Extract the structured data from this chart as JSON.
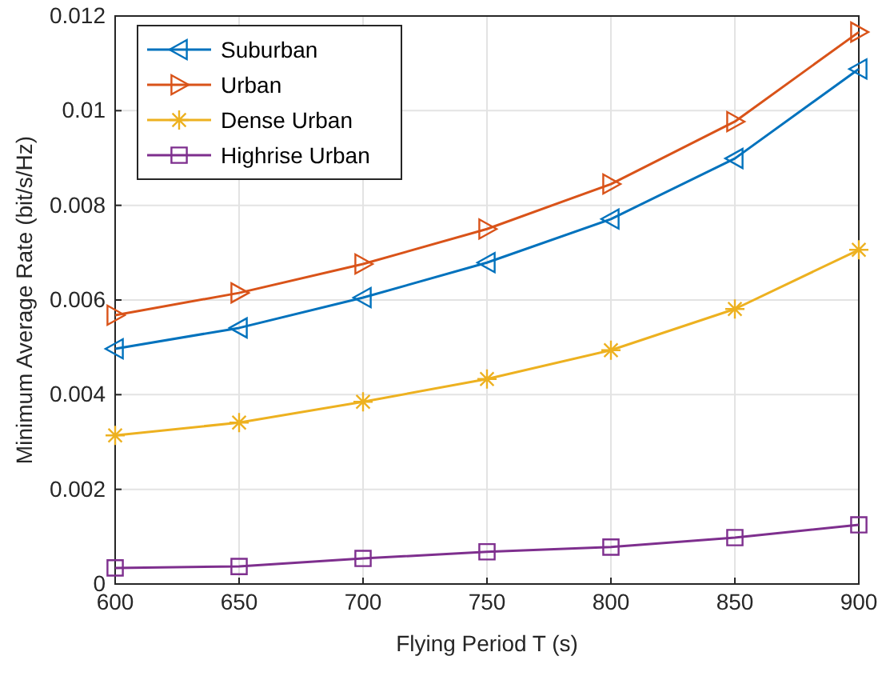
{
  "chart_data": {
    "type": "line",
    "xlabel": "Flying Period T (s)",
    "ylabel": "Minimum Average Rate (bit/s/Hz)",
    "x": [
      600,
      650,
      700,
      750,
      800,
      850,
      900
    ],
    "xlim": [
      600,
      900
    ],
    "xticks": [
      600,
      650,
      700,
      750,
      800,
      850,
      900
    ],
    "ylim": [
      0,
      0.012
    ],
    "yticks": [
      0,
      0.002,
      0.004,
      0.006,
      0.008,
      {
        "value": 0.01,
        "label": "0.01"
      },
      0.012
    ],
    "grid": true,
    "legend": "top left",
    "line_style": "solid",
    "series": [
      {
        "name": "Suburban",
        "color": "#0072bd",
        "marker": "triangle-left",
        "values": [
          0.00497,
          0.00541,
          0.00605,
          0.00679,
          0.00771,
          0.00899,
          0.01088
        ]
      },
      {
        "name": "Urban",
        "color": "#d95319",
        "marker": "triangle-right",
        "values": [
          0.00568,
          0.00615,
          0.00676,
          0.0075,
          0.00845,
          0.00977,
          0.01166
        ]
      },
      {
        "name": "Dense Urban",
        "color": "#edb120",
        "marker": "cross",
        "values": [
          0.00314,
          0.00341,
          0.00385,
          0.00433,
          0.00494,
          0.00581,
          0.00706
        ]
      },
      {
        "name": "Highrise Urban",
        "color": "#7e2f8e",
        "marker": "square",
        "values": [
          0.00034,
          0.00037,
          0.00054,
          0.00068,
          0.00078,
          0.00098,
          0.00125
        ]
      }
    ]
  }
}
